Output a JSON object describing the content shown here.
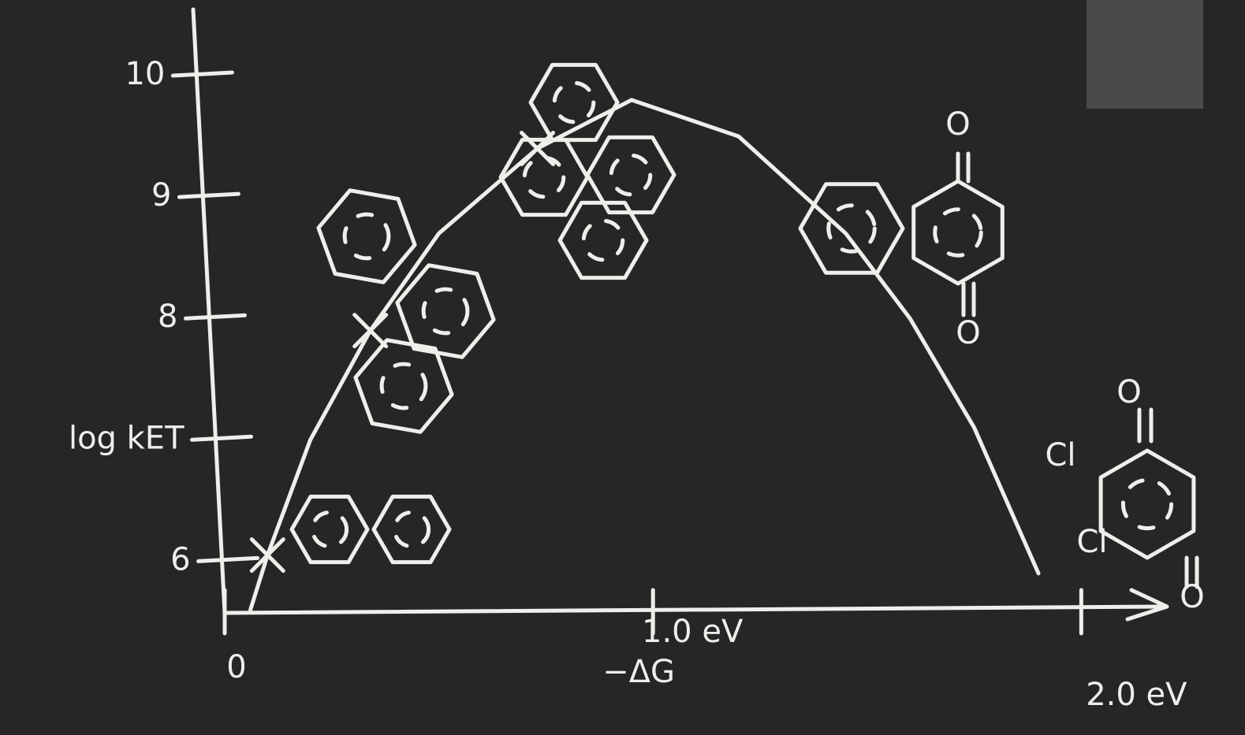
{
  "chart_data": {
    "type": "line",
    "xlabel": "−ΔG",
    "x": [
      0.06,
      0.1,
      0.2,
      0.34,
      0.5,
      0.73,
      0.95,
      1.2,
      1.45,
      1.6,
      1.75,
      1.9
    ],
    "values": [
      5.6,
      6.05,
      7.0,
      7.9,
      8.7,
      9.4,
      9.8,
      9.5,
      8.7,
      8.0,
      7.1,
      5.9
    ],
    "color": "#eeeeea",
    "markers": {
      "x": [
        0.1,
        0.34,
        0.73
      ],
      "values": [
        6.05,
        7.9,
        9.4
      ]
    },
    "xlim": [
      0,
      2.2
    ],
    "ylim": [
      5.6,
      10.5
    ],
    "xticks": [
      0,
      {
        "value": 1,
        "label": "1.0 eV"
      },
      {
        "value": 2,
        "label": "2.0 eV"
      }
    ],
    "yticks": [
      6,
      {
        "value": 7,
        "label": "log kET"
      },
      8,
      9,
      10
    ],
    "annotations": [
      "O",
      "O",
      "O",
      "Cl",
      "Cl",
      "O"
    ]
  }
}
